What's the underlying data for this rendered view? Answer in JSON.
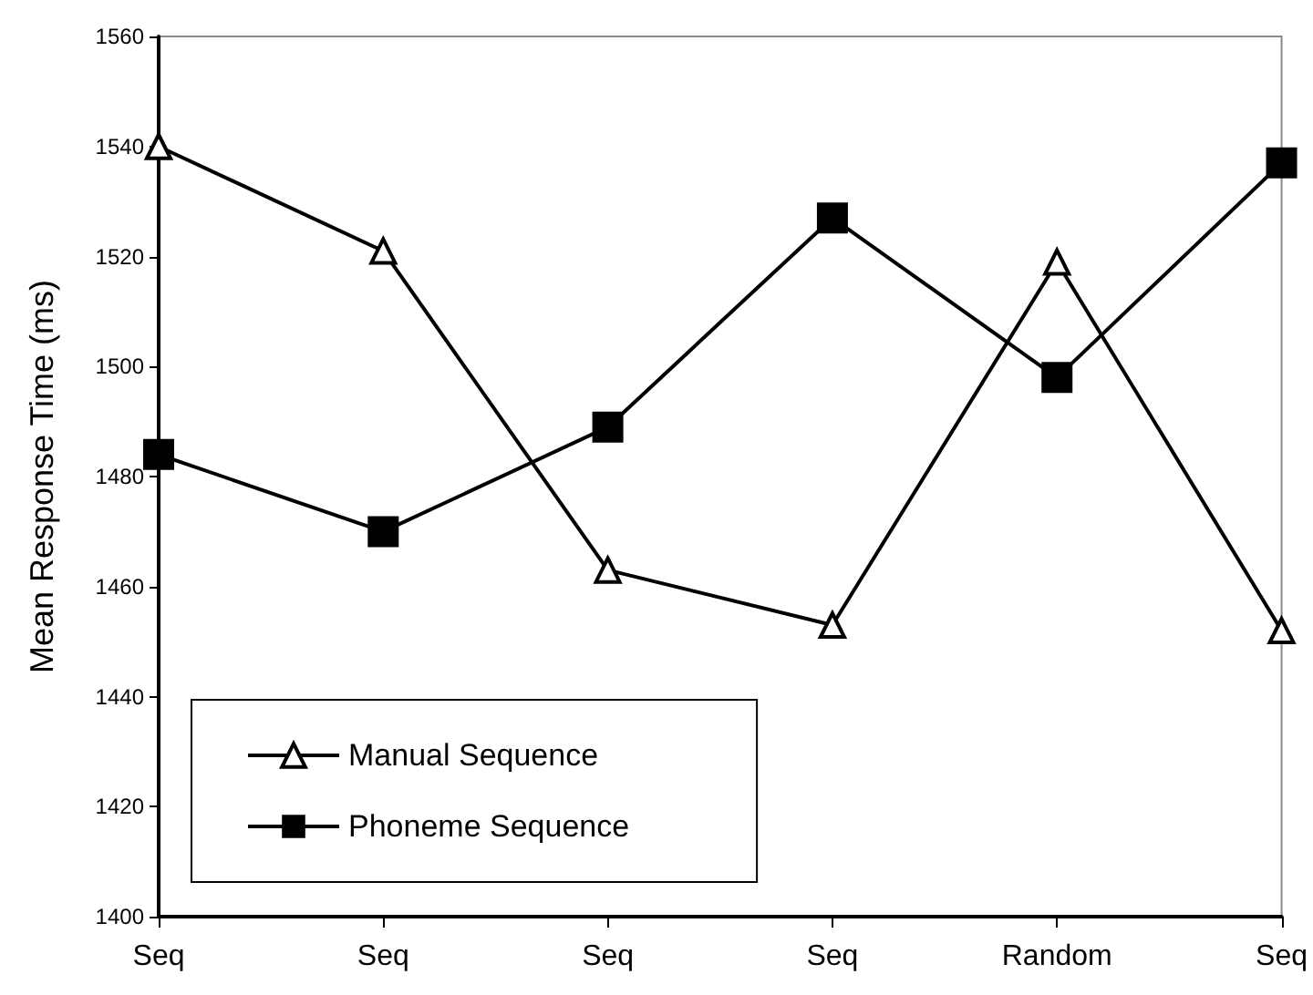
{
  "chart_data": {
    "type": "line",
    "ylabel": "Mean Response Time (ms)",
    "categories": [
      "Seq",
      "Seq",
      "Seq",
      "Seq",
      "Random",
      "Seq"
    ],
    "ylim": [
      1400,
      1560
    ],
    "yticks": [
      1400,
      1420,
      1440,
      1460,
      1480,
      1500,
      1520,
      1540,
      1560
    ],
    "grid": false,
    "legend": "bottom left",
    "series": [
      {
        "name": "Manual Sequence",
        "color": "#000000",
        "marker": "triangle",
        "values": [
          1540,
          1521,
          1463,
          1453,
          1519,
          1452
        ]
      },
      {
        "name": "Phoneme Sequence",
        "color": "#000000",
        "marker": "square",
        "values": [
          1484,
          1470,
          1489,
          1527,
          1498,
          1537
        ]
      }
    ]
  }
}
